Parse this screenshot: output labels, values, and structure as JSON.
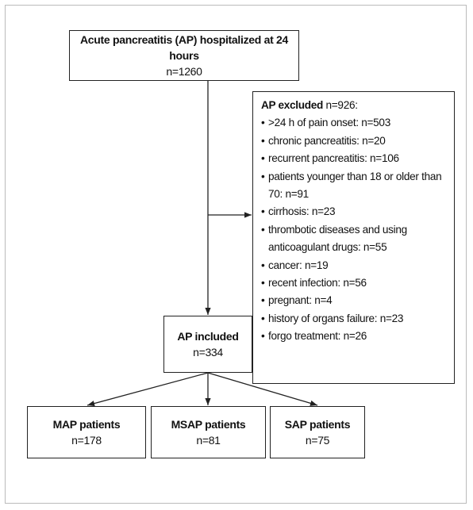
{
  "top": {
    "title": "Acute pancreatitis (AP) hospitalized at 24 hours",
    "count": "n=1260"
  },
  "excluded": {
    "title": "AP excluded",
    "count": "n=926:",
    "items": [
      ">24 h of pain onset: n=503",
      "chronic pancreatitis: n=20",
      "recurrent pancreatitis: n=106",
      "patients younger than 18 or older than 70: n=91",
      "cirrhosis: n=23",
      "thrombotic diseases and using anticoagulant drugs: n=55",
      "cancer: n=19",
      "recent infection: n=56",
      "pregnant: n=4",
      "history of organs failure: n=23",
      "forgo treatment: n=26"
    ]
  },
  "included": {
    "title": "AP included",
    "count": "n=334"
  },
  "groups": [
    {
      "title": "MAP patients",
      "count": "n=178"
    },
    {
      "title": "MSAP patients",
      "count": "n=81"
    },
    {
      "title": "SAP patients",
      "count": "n=75"
    }
  ]
}
